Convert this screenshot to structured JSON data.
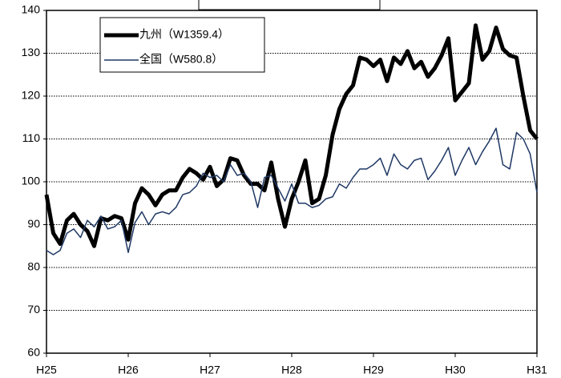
{
  "chart_data": {
    "type": "line",
    "x": [
      0,
      1,
      2,
      3,
      4,
      5,
      6,
      7,
      8,
      9,
      10,
      11,
      12,
      13,
      14,
      15,
      16,
      17,
      18,
      19,
      20,
      21,
      22,
      23,
      24,
      25,
      26,
      27,
      28,
      29,
      30,
      31,
      32,
      33,
      34,
      35,
      36,
      37,
      38,
      39,
      40,
      41,
      42,
      43,
      44,
      45,
      46,
      47,
      48,
      49,
      50,
      51,
      52,
      53,
      54,
      55,
      56,
      57,
      58,
      59,
      60,
      61,
      62,
      63,
      64,
      65,
      66,
      67,
      68,
      69,
      70,
      71,
      72
    ],
    "series": [
      {
        "name": "九州（W1359.4）",
        "color": "#000000",
        "width": 5,
        "values": [
          97,
          88,
          85.5,
          91,
          92.5,
          90,
          88.5,
          85,
          91.5,
          91,
          92,
          91.5,
          86.5,
          95,
          98.5,
          97,
          94.5,
          97,
          98,
          98,
          101,
          103,
          102,
          100.5,
          103.5,
          99,
          100.5,
          105.5,
          105,
          101.5,
          99.5,
          99.5,
          98,
          104.5,
          96,
          89.5,
          96,
          100,
          105,
          95,
          96,
          101.5,
          111,
          117,
          120.5,
          122.5,
          129,
          128.5,
          127,
          128.5,
          123.5,
          129,
          127.5,
          130.5,
          126.5,
          128,
          124.5,
          126.5,
          129.5,
          133.5,
          119,
          121,
          123,
          136.5,
          128.5,
          130.5,
          136,
          131,
          129.5,
          129,
          120,
          112,
          110
        ]
      },
      {
        "name": "全国（W580.8）",
        "color": "#1f3864",
        "width": 1.5,
        "values": [
          84,
          83,
          84,
          88,
          89,
          87,
          91,
          89.5,
          92,
          89,
          89.5,
          91,
          83.5,
          90.5,
          93,
          90,
          92.5,
          93,
          92.5,
          94,
          97,
          97.5,
          99,
          102,
          101,
          101.5,
          100,
          104,
          101.5,
          102,
          100,
          94,
          101,
          101.5,
          98.5,
          95.5,
          99.5,
          95,
          95,
          94,
          94.5,
          96,
          96.5,
          99.5,
          98.5,
          101,
          103,
          103,
          104,
          105.5,
          101.5,
          106.5,
          104,
          103,
          105,
          105.5,
          100.5,
          102.5,
          105,
          108,
          101.5,
          105,
          108,
          104,
          107,
          109.5,
          112.5,
          104,
          103,
          111.5,
          110,
          106.5,
          97.5
        ]
      }
    ],
    "xlim": [
      0,
      72
    ],
    "xticks": [
      {
        "value": 0,
        "label": "H25"
      },
      {
        "value": 12,
        "label": "H26"
      },
      {
        "value": 24,
        "label": "H27"
      },
      {
        "value": 36,
        "label": "H28"
      },
      {
        "value": 48,
        "label": "H29"
      },
      {
        "value": 60,
        "label": "H30"
      },
      {
        "value": 72,
        "label": "H31"
      }
    ],
    "ylim": [
      60,
      140
    ],
    "yticks": [
      60,
      70,
      80,
      90,
      100,
      110,
      120,
      130,
      140
    ],
    "grid": true
  }
}
